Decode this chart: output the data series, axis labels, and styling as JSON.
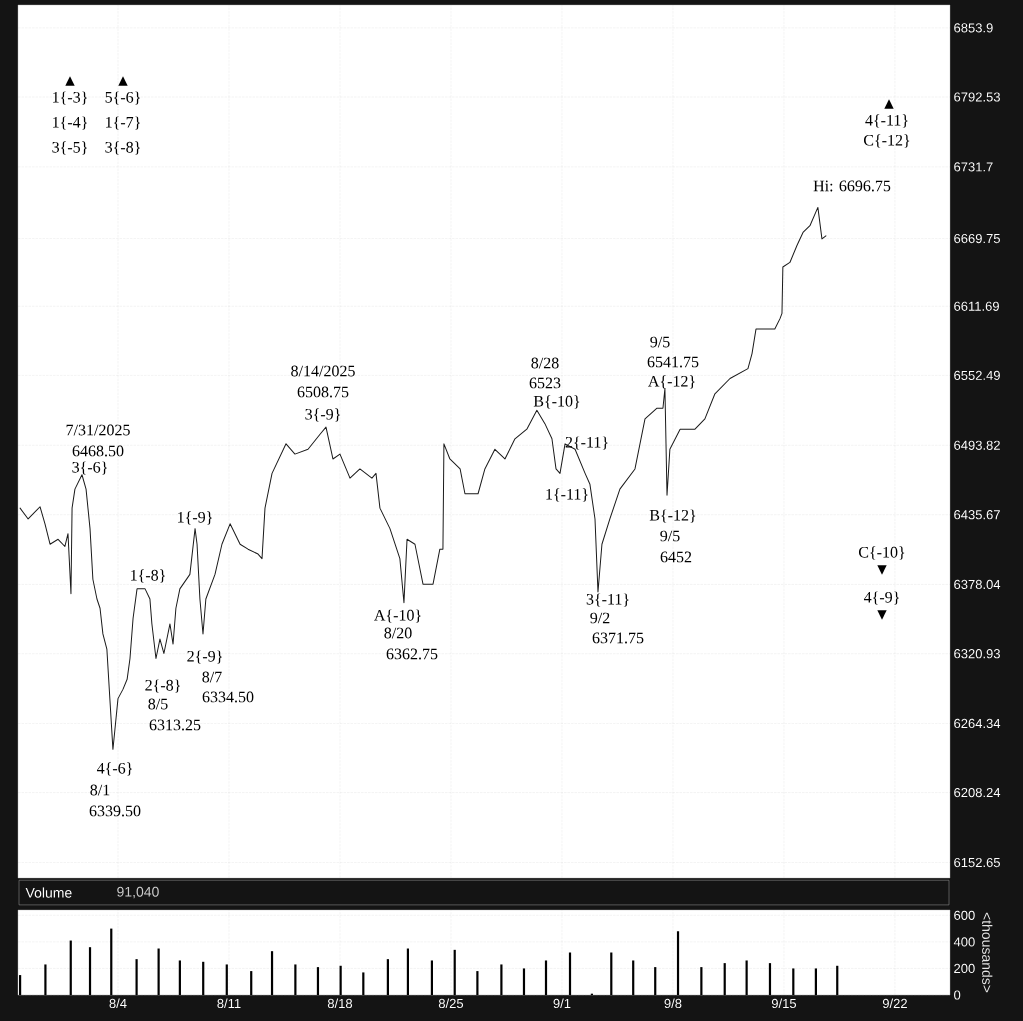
{
  "chart_data": [
    {
      "type": "line",
      "xlim": [
        "2025-07-28T16:40",
        "2025-09-25T11:20"
      ],
      "ylim": [
        6140,
        6874
      ],
      "log": "y",
      "grid": true,
      "tick_labels": "y",
      "xticks": [
        {
          "value": "2025-08-04",
          "label": null
        },
        {
          "value": "2025-08-11",
          "label": null
        },
        {
          "value": "2025-08-18",
          "label": null
        },
        {
          "value": "2025-08-25",
          "label": null
        },
        {
          "value": "2025-09-01",
          "label": null
        },
        {
          "value": "2025-09-08",
          "label": null
        },
        {
          "value": "2025-09-15",
          "label": null
        },
        {
          "value": "2025-09-22",
          "label": null
        }
      ],
      "yticks": [
        6152.65,
        6208.24,
        6264.34,
        6320.93,
        6378.04,
        6435.67,
        6493.82,
        6552.49,
        6611.69,
        6669.75,
        6731.7,
        6792.53,
        6853.9
      ],
      "series": [
        {
          "color": "#1a1a1a",
          "x": [
            "2025-07-28T19:50",
            "2025-07-29T08:00",
            "2025-07-30T02:00",
            "2025-07-30T09:30",
            "2025-07-30T17:10",
            "2025-07-31T05:20",
            "2025-07-31T15:40",
            "2025-07-31T20:20",
            "2025-08-01T00:50",
            "2025-08-01T02:30",
            "2025-08-01T06:50",
            "2025-08-01T17:30",
            "2025-08-01T23:40",
            "2025-08-02T05:40",
            "2025-08-02T10:00",
            "2025-08-02T16:10",
            "2025-08-02T20:50",
            "2025-08-03T01:10",
            "2025-08-03T07:10",
            "2025-08-03T11:50",
            "2025-08-03T16:20",
            "2025-08-03T19:20",
            "2025-08-04T00:00",
            "2025-08-04T07:40",
            "2025-08-04T13:50",
            "2025-08-04T18:10",
            "2025-08-04T22:50",
            "2025-08-05T04:50",
            "2025-08-05T17:00",
            "2025-08-06T00:20",
            "2025-08-06T03:20",
            "2025-08-06T09:30",
            "2025-08-06T15:30",
            "2025-08-06T21:30",
            "2025-08-07T06:40",
            "2025-08-07T11:20",
            "2025-08-07T15:40",
            "2025-08-07T21:40",
            "2025-08-08T12:50",
            "2025-08-08T20:40",
            "2025-08-08T23:40",
            "2025-08-09T04:00",
            "2025-08-09T08:40",
            "2025-08-09T13:00",
            "2025-08-10T02:50",
            "2025-08-10T13:20",
            "2025-08-11T01:40",
            "2025-08-11T16:50",
            "2025-08-12T04:50",
            "2025-08-12T20:00",
            "2025-08-13T02:00",
            "2025-08-13T06:30",
            "2025-08-13T17:10",
            "2025-08-14T14:20",
            "2025-08-15T03:50",
            "2025-08-15T23:40",
            "2025-08-16T17:50",
            "2025-08-17T02:50",
            "2025-08-17T13:20",
            "2025-08-18T00:00",
            "2025-08-18T15:10",
            "2025-08-19T06:10",
            "2025-08-20T00:20",
            "2025-08-20T06:30",
            "2025-08-20T12:30",
            "2025-08-21T03:40",
            "2025-08-21T18:40",
            "2025-08-22T00:50",
            "2025-08-22T05:30",
            "2025-08-22T17:30",
            "2025-08-23T05:40",
            "2025-08-23T20:50",
            "2025-08-24T07:10",
            "2025-08-24T11:50",
            "2025-08-24T13:20",
            "2025-08-24T22:20",
            "2025-08-25T13:50",
            "2025-08-25T21:10",
            "2025-08-26T17:00",
            "2025-08-27T03:20",
            "2025-08-27T18:30",
            "2025-08-28T09:40",
            "2025-08-29T00:50",
            "2025-08-29T18:50",
            "2025-08-30T10:00",
            "2025-08-30T22:10",
            "2025-08-31T08:50",
            "2025-08-31T15:00",
            "2025-08-31T21:00",
            "2025-09-01T04:40",
            "2025-09-01T19:50",
            "2025-09-02T11:00",
            "2025-09-02T18:20",
            "2025-09-03T02:00",
            "2025-09-03T06:30",
            "2025-09-03T12:30",
            "2025-09-04T00:30",
            "2025-09-04T15:40",
            "2025-09-05T14:30",
            "2025-09-06T05:40",
            "2025-09-06T23:50",
            "2025-09-07T08:50",
            "2025-09-07T11:50",
            "2025-09-07T15:00",
            "2025-09-07T19:20",
            "2025-09-08T10:50",
            "2025-09-09T09:20",
            "2025-09-10T00:20",
            "2025-09-10T15:30",
            "2025-09-11T14:20",
            "2025-09-12T17:30",
            "2025-09-12T23:40",
            "2025-09-13T05:40",
            "2025-09-13T20:50",
            "2025-09-14T10:10",
            "2025-09-14T18:00",
            "2025-09-14T21:00",
            "2025-09-14T22:20",
            "2025-09-15T09:00",
            "2025-09-15T19:50",
            "2025-09-16T04:50",
            "2025-09-16T15:20",
            "2025-09-17T03:20",
            "2025-09-17T09:30",
            "2025-09-17T15:30"
          ],
          "values": [
            6441,
            6432,
            6442,
            6428,
            6411,
            6415,
            6409,
            6420,
            6370,
            6441,
            6457,
            6468.5,
            6457,
            6424,
            6382,
            6366,
            6358,
            6337,
            6325,
            6283,
            6243,
            6259,
            6284,
            6292,
            6300,
            6317,
            6350,
            6374,
            6374,
            6366,
            6345,
            6317,
            6333,
            6321,
            6345,
            6329,
            6358,
            6374,
            6386,
            6424,
            6411,
            6366,
            6337,
            6366,
            6386,
            6411,
            6428,
            6411,
            6407,
            6403,
            6399,
            6441,
            6470,
            6495,
            6486,
            6490,
            6503,
            6508.75,
            6482,
            6486,
            6466,
            6474,
            6466,
            6470,
            6441,
            6424,
            6399,
            6362.75,
            6415,
            6411,
            6378,
            6378,
            6407,
            6407,
            6495,
            6482,
            6474,
            6453,
            6453,
            6474,
            6490,
            6482,
            6499,
            6507,
            6523,
            6512,
            6499,
            6474,
            6470,
            6495,
            6490,
            6470,
            6461,
            6432,
            6371.75,
            6411,
            6432,
            6457,
            6474,
            6516,
            6525,
            6525,
            6541.75,
            6452,
            6490,
            6507,
            6507,
            6516,
            6537,
            6550,
            6558,
            6571,
            6592,
            6592,
            6592,
            6601,
            6605,
            6645,
            6649,
            6664,
            6675,
            6681,
            6696.75,
            6669,
            6672
          ]
        }
      ],
      "annotations": [
        "7/31/2025",
        "6468.50",
        "3{-6}",
        "4{-6}",
        "8/1",
        "6339.50",
        "1{-8}",
        "2{-8}",
        "8/5",
        "6313.25",
        "1{-9}",
        "2{-9}",
        "8/7",
        "6334.50",
        "8/14/2025",
        "6508.75",
        "3{-9}",
        "A{-10}",
        "8/20",
        "6362.75",
        "8/28",
        "6523",
        "B{-10}",
        "2{-11}",
        "1{-11}",
        "3{-11}",
        "9/2",
        "6371.75",
        "9/5",
        "6541.75",
        "A{-12}",
        "B{-12}",
        "9/5",
        "6452",
        "▲",
        "1{-3}",
        "1{-4}",
        "3{-5}",
        "▲",
        "5{-6}",
        "1{-7}",
        "3{-8}",
        "▲",
        "4{-11}",
        "C{-12}",
        "C{-10}",
        "▼",
        "4{-9}",
        "▼",
        "Hi: 6696.75"
      ]
    },
    {
      "type": "bar",
      "title": "Volume",
      "ylabel": "<thousands>",
      "xlim": [
        "2025-07-28T16:40",
        "2025-09-25T11:20"
      ],
      "ylim": [
        0,
        640
      ],
      "grid": true,
      "xticks": [
        {
          "value": "2025-08-04",
          "label": "8/4"
        },
        {
          "value": "2025-08-11",
          "label": "8/11"
        },
        {
          "value": "2025-08-18",
          "label": "8/18"
        },
        {
          "value": "2025-08-25",
          "label": "8/25"
        },
        {
          "value": "2025-09-01",
          "label": "9/1"
        },
        {
          "value": "2025-09-08",
          "label": "9/8"
        },
        {
          "value": "2025-09-15",
          "label": "9/15"
        },
        {
          "value": "2025-09-22",
          "label": "9/22"
        }
      ],
      "yticks": [
        0,
        200,
        400,
        600
      ],
      "series": [
        {
          "color": "#000000",
          "x": [
            "2025-07-28T19:50",
            "2025-07-30T10:10",
            "2025-08-01T00:30",
            "2025-08-02T05:40",
            "2025-08-03T13:50",
            "2025-08-05T04:10",
            "2025-08-06T13:30",
            "2025-08-07T21:40",
            "2025-08-09T09:00",
            "2025-08-10T20:40",
            "2025-08-12T09:40",
            "2025-08-13T17:10",
            "2025-08-15T04:30",
            "2025-08-16T14:40",
            "2025-08-18T01:00",
            "2025-08-19T11:20",
            "2025-08-21T00:30",
            "2025-08-22T06:50",
            "2025-08-23T19:10",
            "2025-08-25T05:40",
            "2025-08-26T16:00",
            "2025-08-28T04:20",
            "2025-08-29T14:30",
            "2025-08-30T23:50",
            "2025-09-01T12:10",
            "2025-09-02T21:20",
            "2025-09-04T02:40",
            "2025-09-05T11:50",
            "2025-09-06T21:10",
            "2025-09-08T07:40",
            "2025-09-09T19:00",
            "2025-09-11T06:20",
            "2025-09-12T15:30",
            "2025-09-14T02:50",
            "2025-09-15T14:10",
            "2025-09-17T00:20",
            "2025-09-18T08:40"
          ],
          "values": [
            150,
            230,
            410,
            360,
            500,
            270,
            350,
            260,
            250,
            230,
            180,
            330,
            230,
            210,
            220,
            170,
            270,
            350,
            260,
            340,
            180,
            230,
            200,
            260,
            320,
            10,
            320,
            260,
            210,
            480,
            210,
            240,
            260,
            240,
            200,
            200,
            220
          ]
        }
      ],
      "annotations": [
        "91,040"
      ]
    }
  ]
}
